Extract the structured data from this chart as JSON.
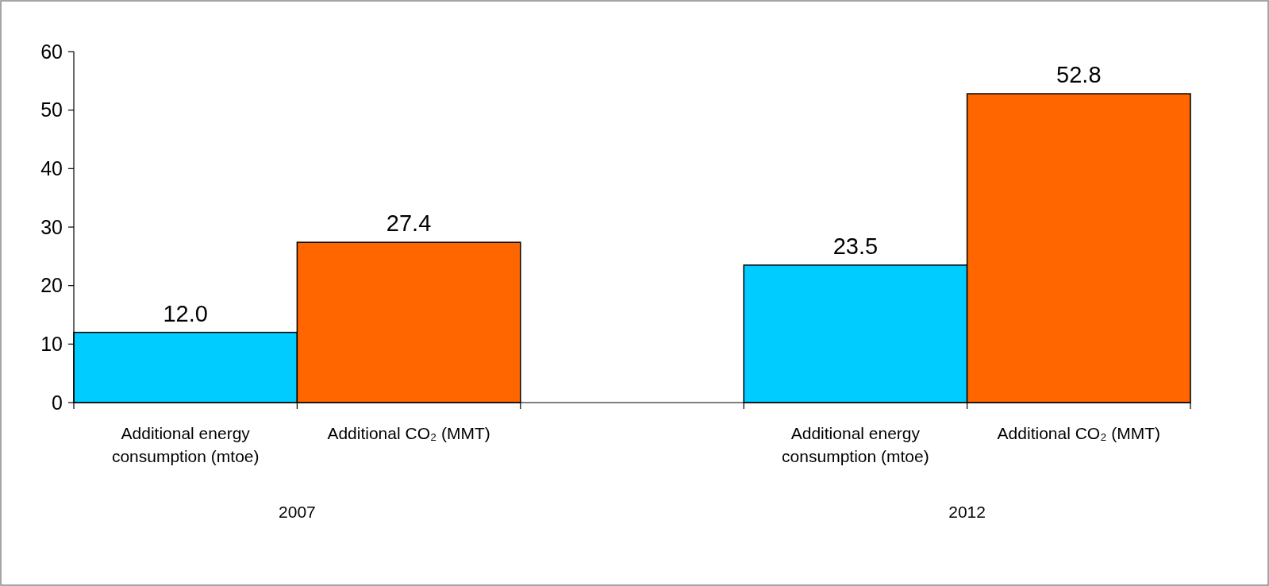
{
  "chart_data": {
    "type": "bar",
    "categories": [
      "2007",
      "2012"
    ],
    "series": [
      {
        "name": "Additional energy consumption (mtoe)",
        "color": "#00ccff",
        "values": [
          12.0,
          23.5
        ],
        "value_labels": [
          "12.0",
          "23.5"
        ]
      },
      {
        "name": "Additional CO₂ (MMT)",
        "color": "#ff6600",
        "values": [
          27.4,
          52.8
        ],
        "value_labels": [
          "27.4",
          "52.8"
        ]
      }
    ],
    "ylim": [
      0,
      60
    ],
    "yticks": [
      0,
      10,
      20,
      30,
      40,
      50,
      60
    ],
    "grid": false
  }
}
